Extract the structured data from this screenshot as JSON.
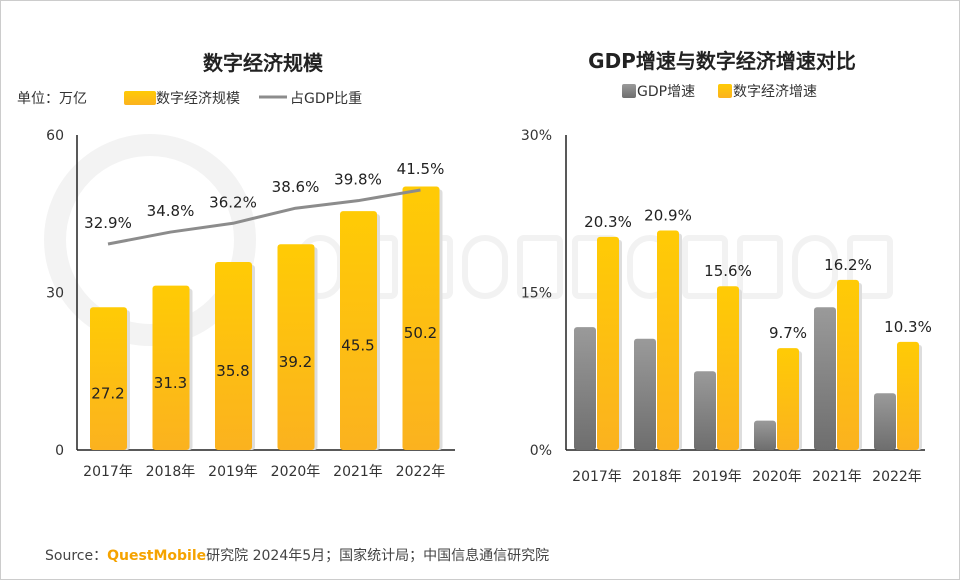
{
  "chart_data": [
    {
      "type": "bar",
      "title": "数字经济规模",
      "unit_label": "单位：万亿",
      "categories": [
        "2017年",
        "2018年",
        "2019年",
        "2020年",
        "2021年",
        "2022年"
      ],
      "ylim": [
        0,
        60
      ],
      "yticks": [
        "0",
        "30",
        "60"
      ],
      "legend_position": "top",
      "series": [
        {
          "name": "数字经济规模",
          "type": "bar",
          "values": [
            27.2,
            31.3,
            35.8,
            39.2,
            45.5,
            50.2
          ],
          "labels": [
            "27.2",
            "31.3",
            "35.8",
            "39.2",
            "45.5",
            "50.2"
          ],
          "color": "#ffc000"
        },
        {
          "name": "占GDP比重",
          "type": "line",
          "values": [
            32.9,
            34.8,
            36.2,
            38.6,
            39.8,
            41.5
          ],
          "labels": [
            "32.9%",
            "34.8%",
            "36.2%",
            "38.6%",
            "39.8%",
            "41.5%"
          ],
          "color": "#8c8c8c"
        }
      ]
    },
    {
      "type": "bar",
      "title": "GDP增速与数字经济增速对比",
      "categories": [
        "2017年",
        "2018年",
        "2019年",
        "2020年",
        "2021年",
        "2022年"
      ],
      "ylim": [
        0,
        30
      ],
      "yticks": [
        "0%",
        "15%",
        "30%"
      ],
      "legend_position": "top",
      "series": [
        {
          "name": "GDP增速",
          "values": [
            11.7,
            10.6,
            7.5,
            2.8,
            13.6,
            5.4
          ],
          "color": "#808080"
        },
        {
          "name": "数字经济增速",
          "values": [
            20.3,
            20.9,
            15.6,
            9.7,
            16.2,
            10.3
          ],
          "labels": [
            "20.3%",
            "20.9%",
            "15.6%",
            "9.7%",
            "16.2%",
            "10.3%"
          ],
          "color": "#ffc000"
        }
      ]
    }
  ],
  "watermark": "QUESTMOBILE",
  "source": {
    "prefix": "Source：",
    "brand": "QuestMobile",
    "text": "研究院 2024年5月；国家统计局；中国信息通信研究院"
  }
}
